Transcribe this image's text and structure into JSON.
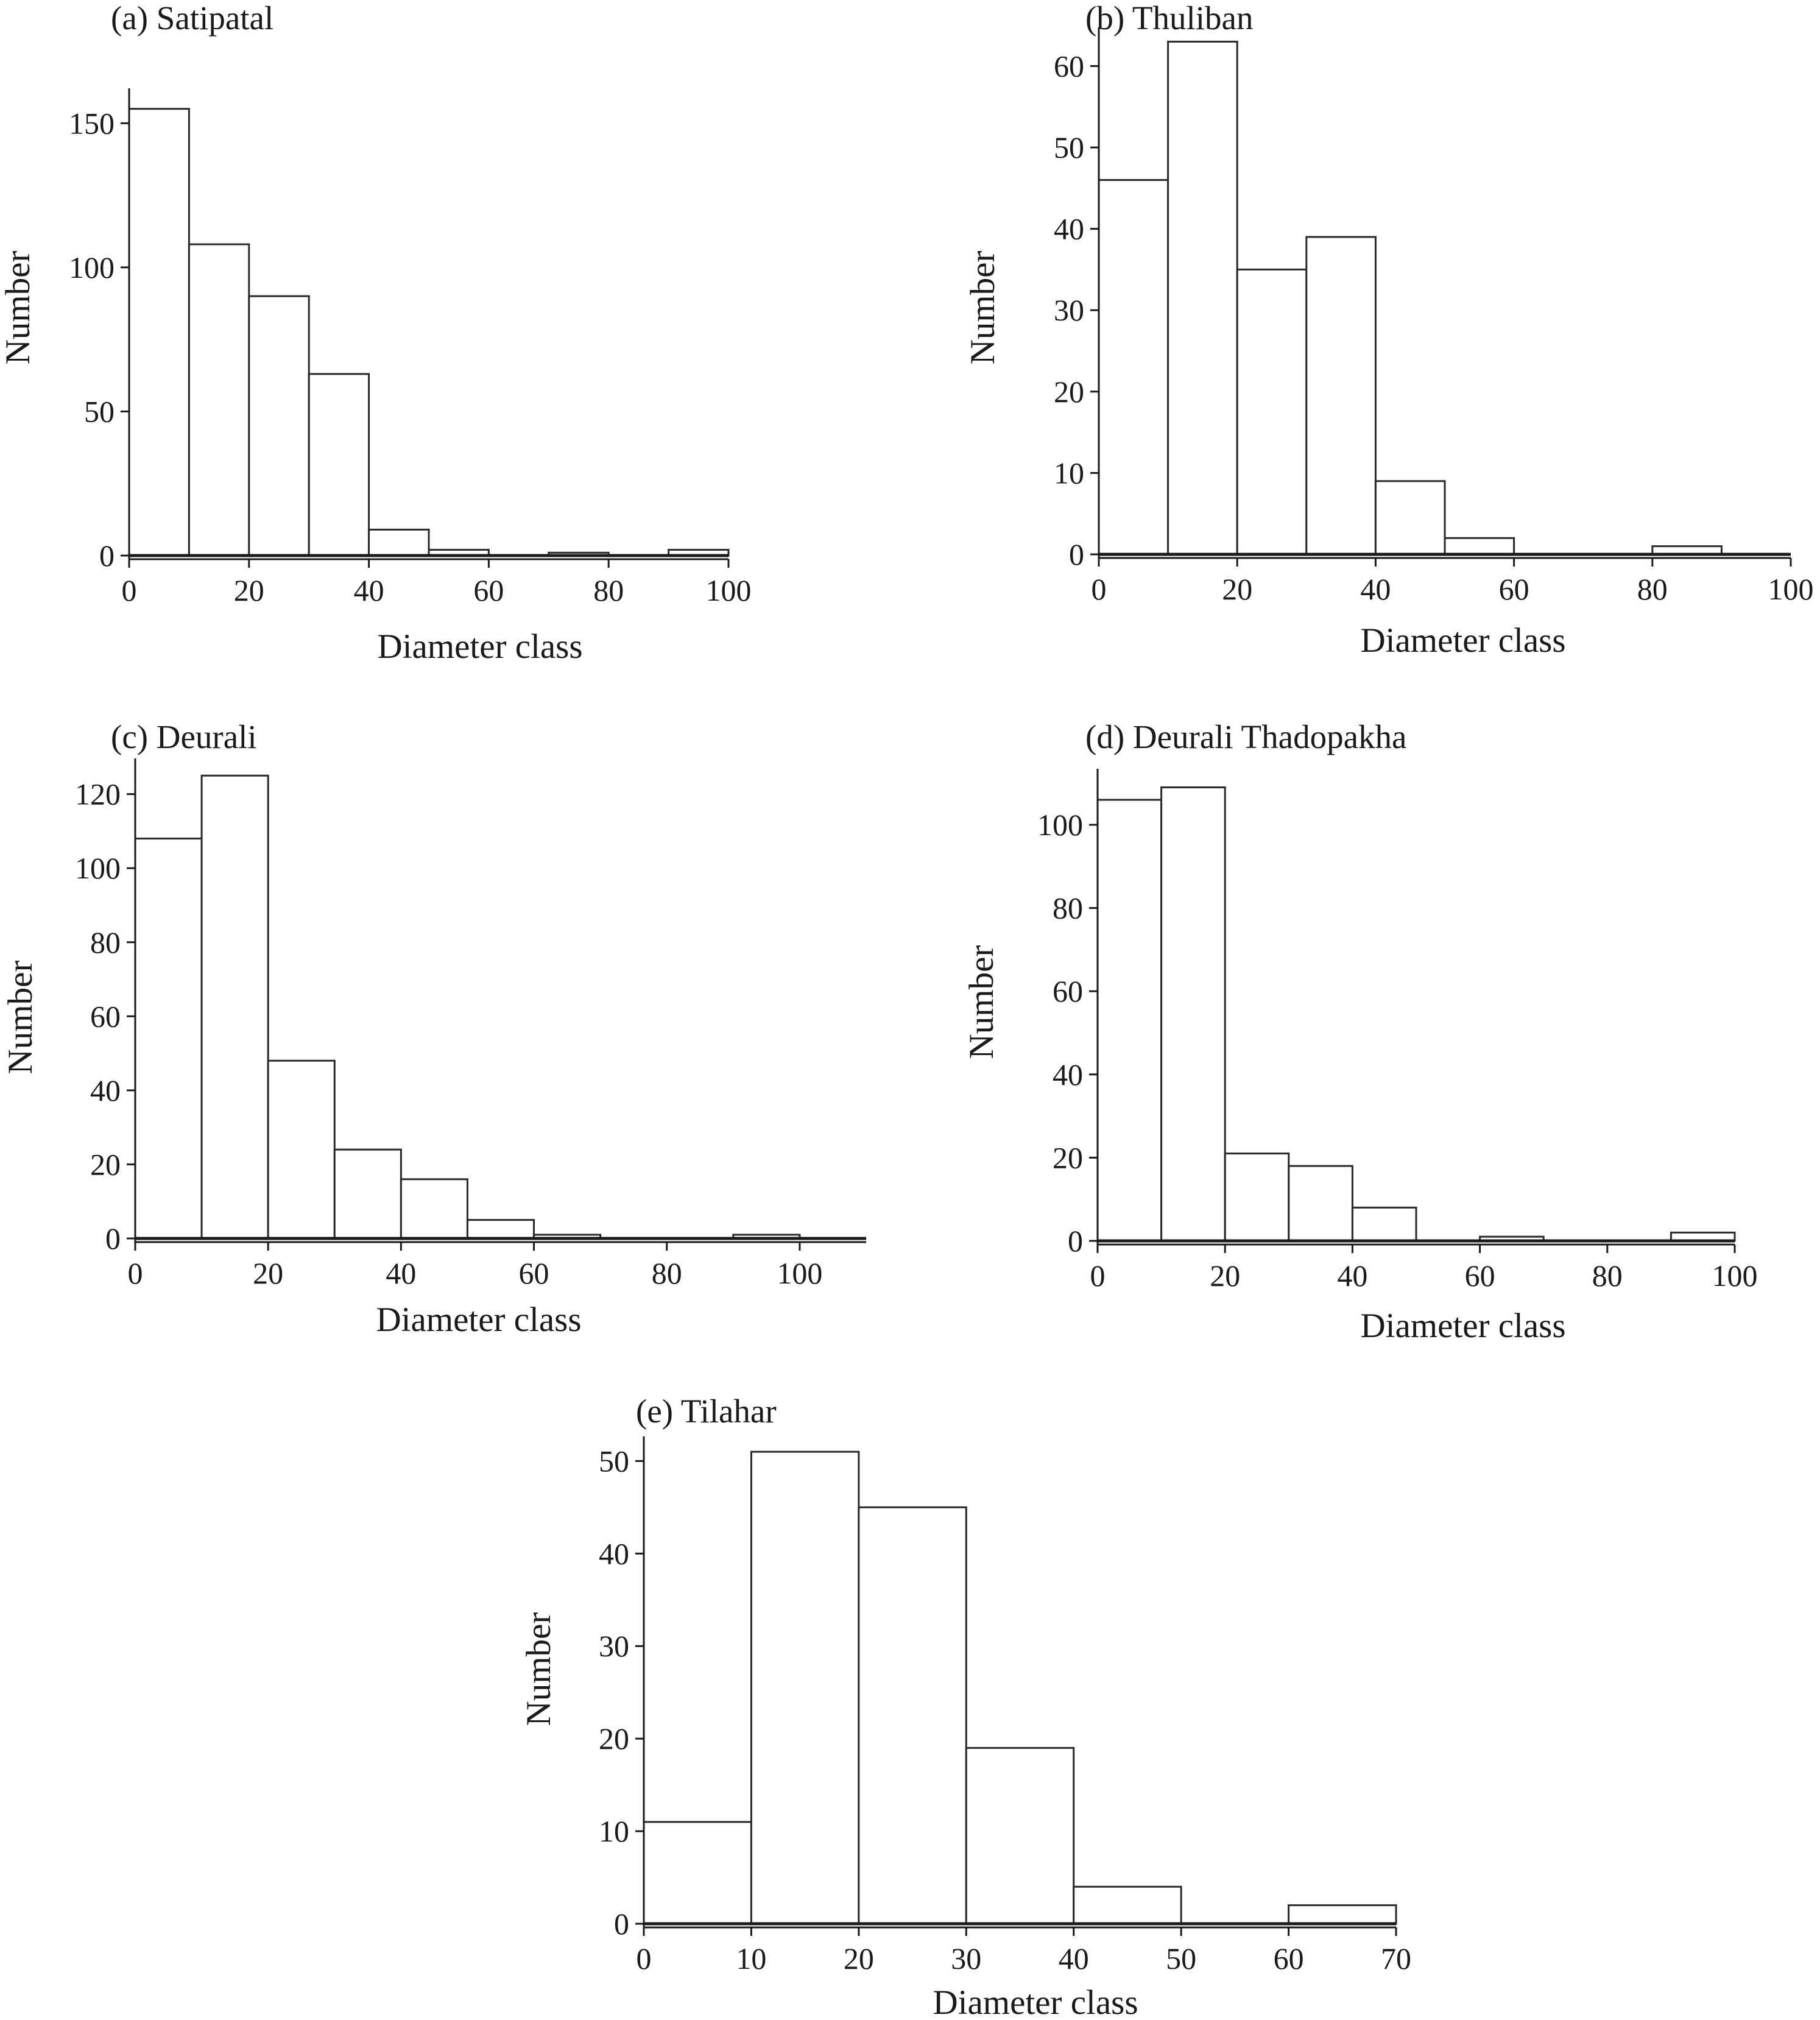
{
  "chart_data": [
    {
      "type": "bar",
      "title": "(a) Satipatal",
      "xlabel": "Diameter class",
      "ylabel": "Number",
      "bin_edges": [
        0,
        10,
        20,
        30,
        40,
        50,
        60,
        70,
        80,
        90,
        100
      ],
      "values": [
        155,
        108,
        90,
        63,
        9,
        2,
        0,
        1,
        0,
        2
      ],
      "xticks": [
        0,
        20,
        40,
        60,
        80,
        100
      ],
      "yticks": [
        0,
        50,
        100,
        150
      ],
      "xlim": [
        0,
        100
      ],
      "ylim": [
        0,
        160
      ],
      "grid": false
    },
    {
      "type": "bar",
      "title": "(b) Thuliban",
      "xlabel": "Diameter class",
      "ylabel": "Number",
      "bin_edges": [
        0,
        10,
        20,
        30,
        40,
        50,
        60,
        70,
        80,
        90,
        100
      ],
      "values": [
        46,
        63,
        35,
        39,
        9,
        2,
        0,
        0,
        1,
        0
      ],
      "xticks": [
        0,
        20,
        40,
        60,
        80,
        100
      ],
      "yticks": [
        0,
        10,
        20,
        30,
        40,
        50,
        60
      ],
      "xlim": [
        0,
        100
      ],
      "ylim": [
        0,
        64
      ],
      "grid": false
    },
    {
      "type": "bar",
      "title": "(c) Deurali",
      "xlabel": "Diameter class",
      "ylabel": "Number",
      "bin_edges": [
        0,
        10,
        20,
        30,
        40,
        50,
        60,
        70,
        80,
        90,
        100,
        110
      ],
      "values": [
        108,
        125,
        48,
        24,
        16,
        5,
        1,
        0,
        0,
        1,
        0
      ],
      "xticks": [
        0,
        20,
        40,
        60,
        80,
        100
      ],
      "yticks": [
        0,
        20,
        40,
        60,
        80,
        100,
        120
      ],
      "xlim": [
        0,
        110
      ],
      "ylim": [
        0,
        128
      ],
      "grid": false
    },
    {
      "type": "bar",
      "title": "(d) Deurali Thadopakha",
      "xlabel": "Diameter class",
      "ylabel": "Number",
      "bin_edges": [
        0,
        10,
        20,
        30,
        40,
        50,
        60,
        70,
        80,
        90,
        100
      ],
      "values": [
        106,
        109,
        21,
        18,
        8,
        0,
        1,
        0,
        0,
        2
      ],
      "xticks": [
        0,
        20,
        40,
        60,
        80,
        100
      ],
      "yticks": [
        0,
        20,
        40,
        60,
        80,
        100
      ],
      "xlim": [
        0,
        100
      ],
      "ylim": [
        0,
        112
      ],
      "grid": false
    },
    {
      "type": "bar",
      "title": "(e) Tilahar",
      "xlabel": "Diameter class",
      "ylabel": "Number",
      "bin_edges": [
        0,
        10,
        20,
        30,
        40,
        50,
        60,
        70
      ],
      "values": [
        11,
        51,
        45,
        19,
        4,
        0,
        2
      ],
      "xticks": [
        0,
        10,
        20,
        30,
        40,
        50,
        60,
        70
      ],
      "yticks": [
        0,
        10,
        20,
        30,
        40,
        50
      ],
      "xlim": [
        0,
        70
      ],
      "ylim": [
        0,
        52
      ],
      "grid": false
    }
  ]
}
